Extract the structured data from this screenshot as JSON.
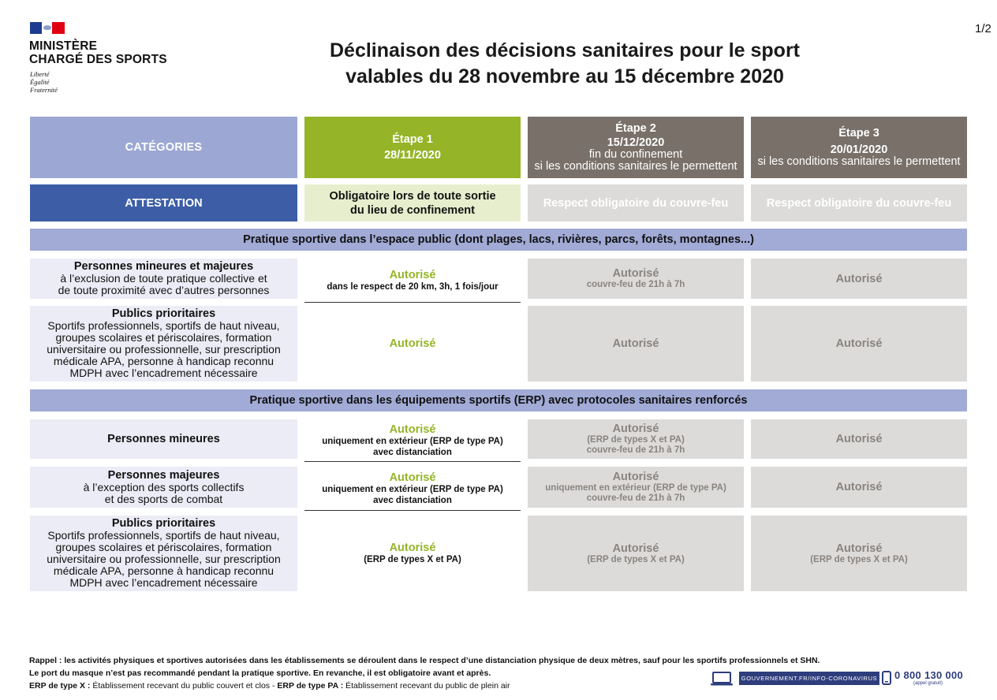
{
  "page": {
    "number": "1/2"
  },
  "logo": {
    "ministry_line1": "MINISTÈRE",
    "ministry_line2": "CHARGÉ DES SPORTS",
    "motto": [
      "Liberté",
      "Égalité",
      "Fraternité"
    ]
  },
  "title": {
    "line1": "Déclinaison des décisions sanitaires pour le sport",
    "line2": "valables du 28 novembre au 15 décembre 2020"
  },
  "header": {
    "categories": "CATÉGORIES",
    "etape1": {
      "label": "Étape 1",
      "date": "28/11/2020"
    },
    "etape2": {
      "label": "Étape 2",
      "date": "15/12/2020",
      "line3": "fin du confinement",
      "line4": "si les conditions sanitaires le permettent"
    },
    "etape3": {
      "label": "Étape 3",
      "date": "20/01/2020",
      "line3": "si les conditions sanitaires le permettent"
    }
  },
  "attestation": {
    "label": "ATTESTATION",
    "etape1_line1": "Obligatoire lors de toute sortie",
    "etape1_line2": "du lieu de confinement",
    "etape2": "Respect obligatoire du couvre-feu",
    "etape3": "Respect obligatoire du couvre-feu"
  },
  "section1": {
    "title": "Pratique sportive dans l’espace public (dont plages, lacs, rivières, parcs, forêts, montagnes...)",
    "rows": [
      {
        "title": "Personnes mineures et majeures",
        "desc": [
          "à l’exclusion de toute pratique collective et",
          "de toute proximité avec d’autres personnes"
        ],
        "e1_main": "Autorisé",
        "e1_note": "dans le respect de 20 km, 3h, 1 fois/jour",
        "e2_main": "Autorisé",
        "e2_note": "couvre-feu de 21h à 7h",
        "e3_main": "Autorisé"
      },
      {
        "title": "Publics prioritaires",
        "desc": [
          "Sportifs professionnels, sportifs de haut niveau,",
          "groupes scolaires et périscolaires, formation",
          "universitaire ou professionnelle, sur prescription",
          "médicale APA, personne à handicap reconnu",
          "MDPH avec l’encadrement nécessaire"
        ],
        "e1_main": "Autorisé",
        "e2_main": "Autorisé",
        "e3_main": "Autorisé"
      }
    ]
  },
  "section2": {
    "title": "Pratique sportive dans les équipements sportifs (ERP) avec protocoles sanitaires renforcés",
    "rows": [
      {
        "title": "Personnes mineures",
        "e1_main": "Autorisé",
        "e1_note1": "uniquement en extérieur (ERP de type PA)",
        "e1_note2": "avec distanciation",
        "e2_main": "Autorisé",
        "e2_note1": "(ERP de types X et PA)",
        "e2_note2": "couvre-feu de 21h à 7h",
        "e3_main": "Autorisé"
      },
      {
        "title": "Personnes majeures",
        "desc": [
          "à l’exception des sports collectifs",
          "et des sports de combat"
        ],
        "e1_main": "Autorisé",
        "e1_note1": "uniquement en extérieur (ERP de type PA)",
        "e1_note2": "avec distanciation",
        "e2_main": "Autorisé",
        "e2_note1": "uniquement en extérieur (ERP de type PA)",
        "e2_note2": "couvre-feu de 21h à 7h",
        "e3_main": "Autorisé"
      },
      {
        "title": "Publics prioritaires",
        "desc": [
          "Sportifs professionnels, sportifs de haut niveau,",
          "groupes scolaires et périscolaires, formation",
          "universitaire ou professionnelle, sur prescription",
          "médicale APA, personne à handicap reconnu",
          "MDPH avec l’encadrement nécessaire"
        ],
        "e1_main": "Autorisé",
        "e1_note": "(ERP de types X et PA)",
        "e2_main": "Autorisé",
        "e2_note": "(ERP de types X et PA)",
        "e3_main": "Autorisé",
        "e3_note": "(ERP de types X et PA)"
      }
    ]
  },
  "footer": {
    "line1": "Rappel : les activités physiques et sportives autorisées dans les établissements se déroulent dans le respect d’une distanciation physique de deux mètres, sauf pour les sportifs professionnels et SHN.",
    "line2": "Le port du masque n’est pas recommandé pendant la pratique sportive. En revanche, il est obligatoire avant et après.",
    "line3_label_x": "ERP de type X :",
    "line3_text_x": " Établissement recevant du public couvert et clos - ",
    "line3_label_pa": "ERP de type PA :",
    "line3_text_pa": " Établissement recevant du public de plein air"
  },
  "contact": {
    "website": "GOUVERNEMENT.FR/INFO-CORONAVIRUS",
    "phone": "0 800 130 000",
    "phone_note": "(appel gratuit)"
  },
  "colors": {
    "categories_header": "#9ca8d3",
    "etape1": "#95b428",
    "etape_grey": "#787069",
    "attestation": "#3d5ea6",
    "section_band": "#a1abd6",
    "category_cell": "#ececf6",
    "grey_cell": "#dcdbd9"
  }
}
